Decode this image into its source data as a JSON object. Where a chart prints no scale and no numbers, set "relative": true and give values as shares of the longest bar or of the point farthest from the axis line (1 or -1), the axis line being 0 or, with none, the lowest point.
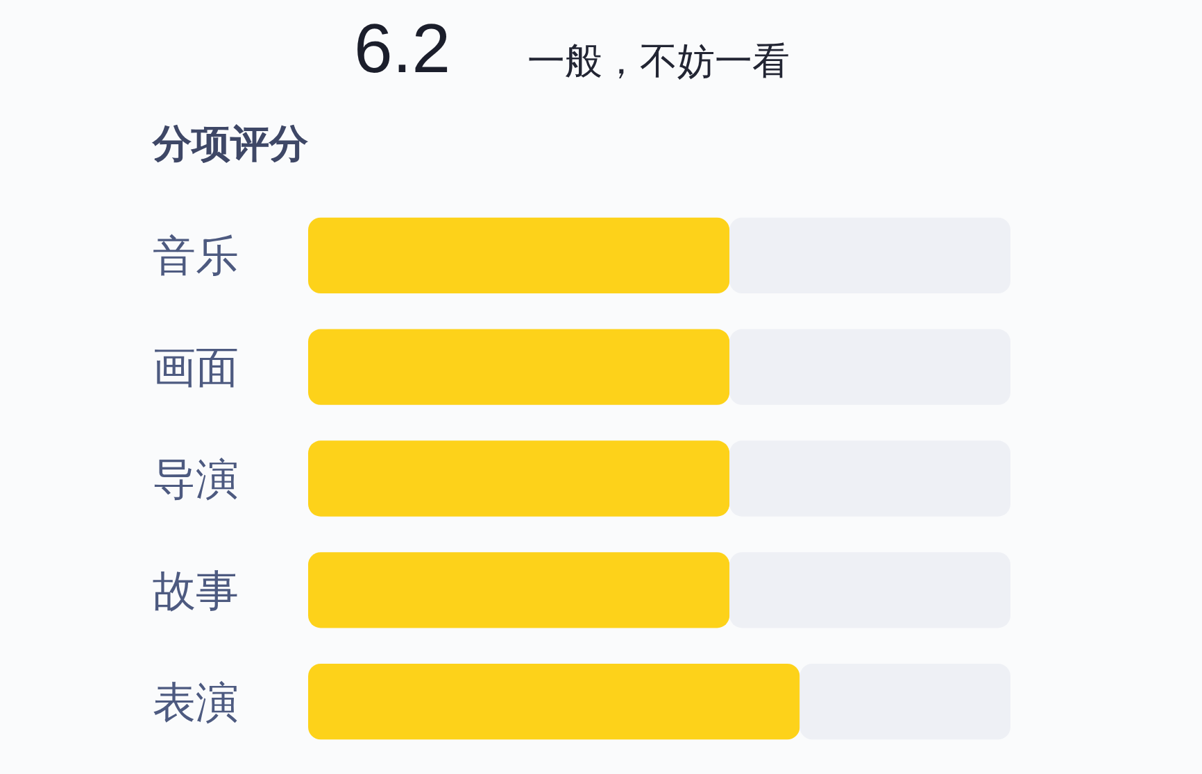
{
  "chart_data": {
    "type": "bar",
    "orientation": "horizontal",
    "stacked": true,
    "relative": true,
    "title": "分项评分",
    "annotations": [
      "6.2",
      "一般，不妨一看"
    ],
    "categories": [
      "音乐",
      "画面",
      "导演",
      "故事",
      "表演"
    ],
    "series": [
      {
        "color": "#fdd21a",
        "values": [
          0.6,
          0.6,
          0.6,
          0.6,
          0.7
        ]
      },
      {
        "color": "#eef0f5",
        "values": [
          0.4,
          0.4,
          0.4,
          0.4,
          0.3
        ]
      }
    ]
  }
}
